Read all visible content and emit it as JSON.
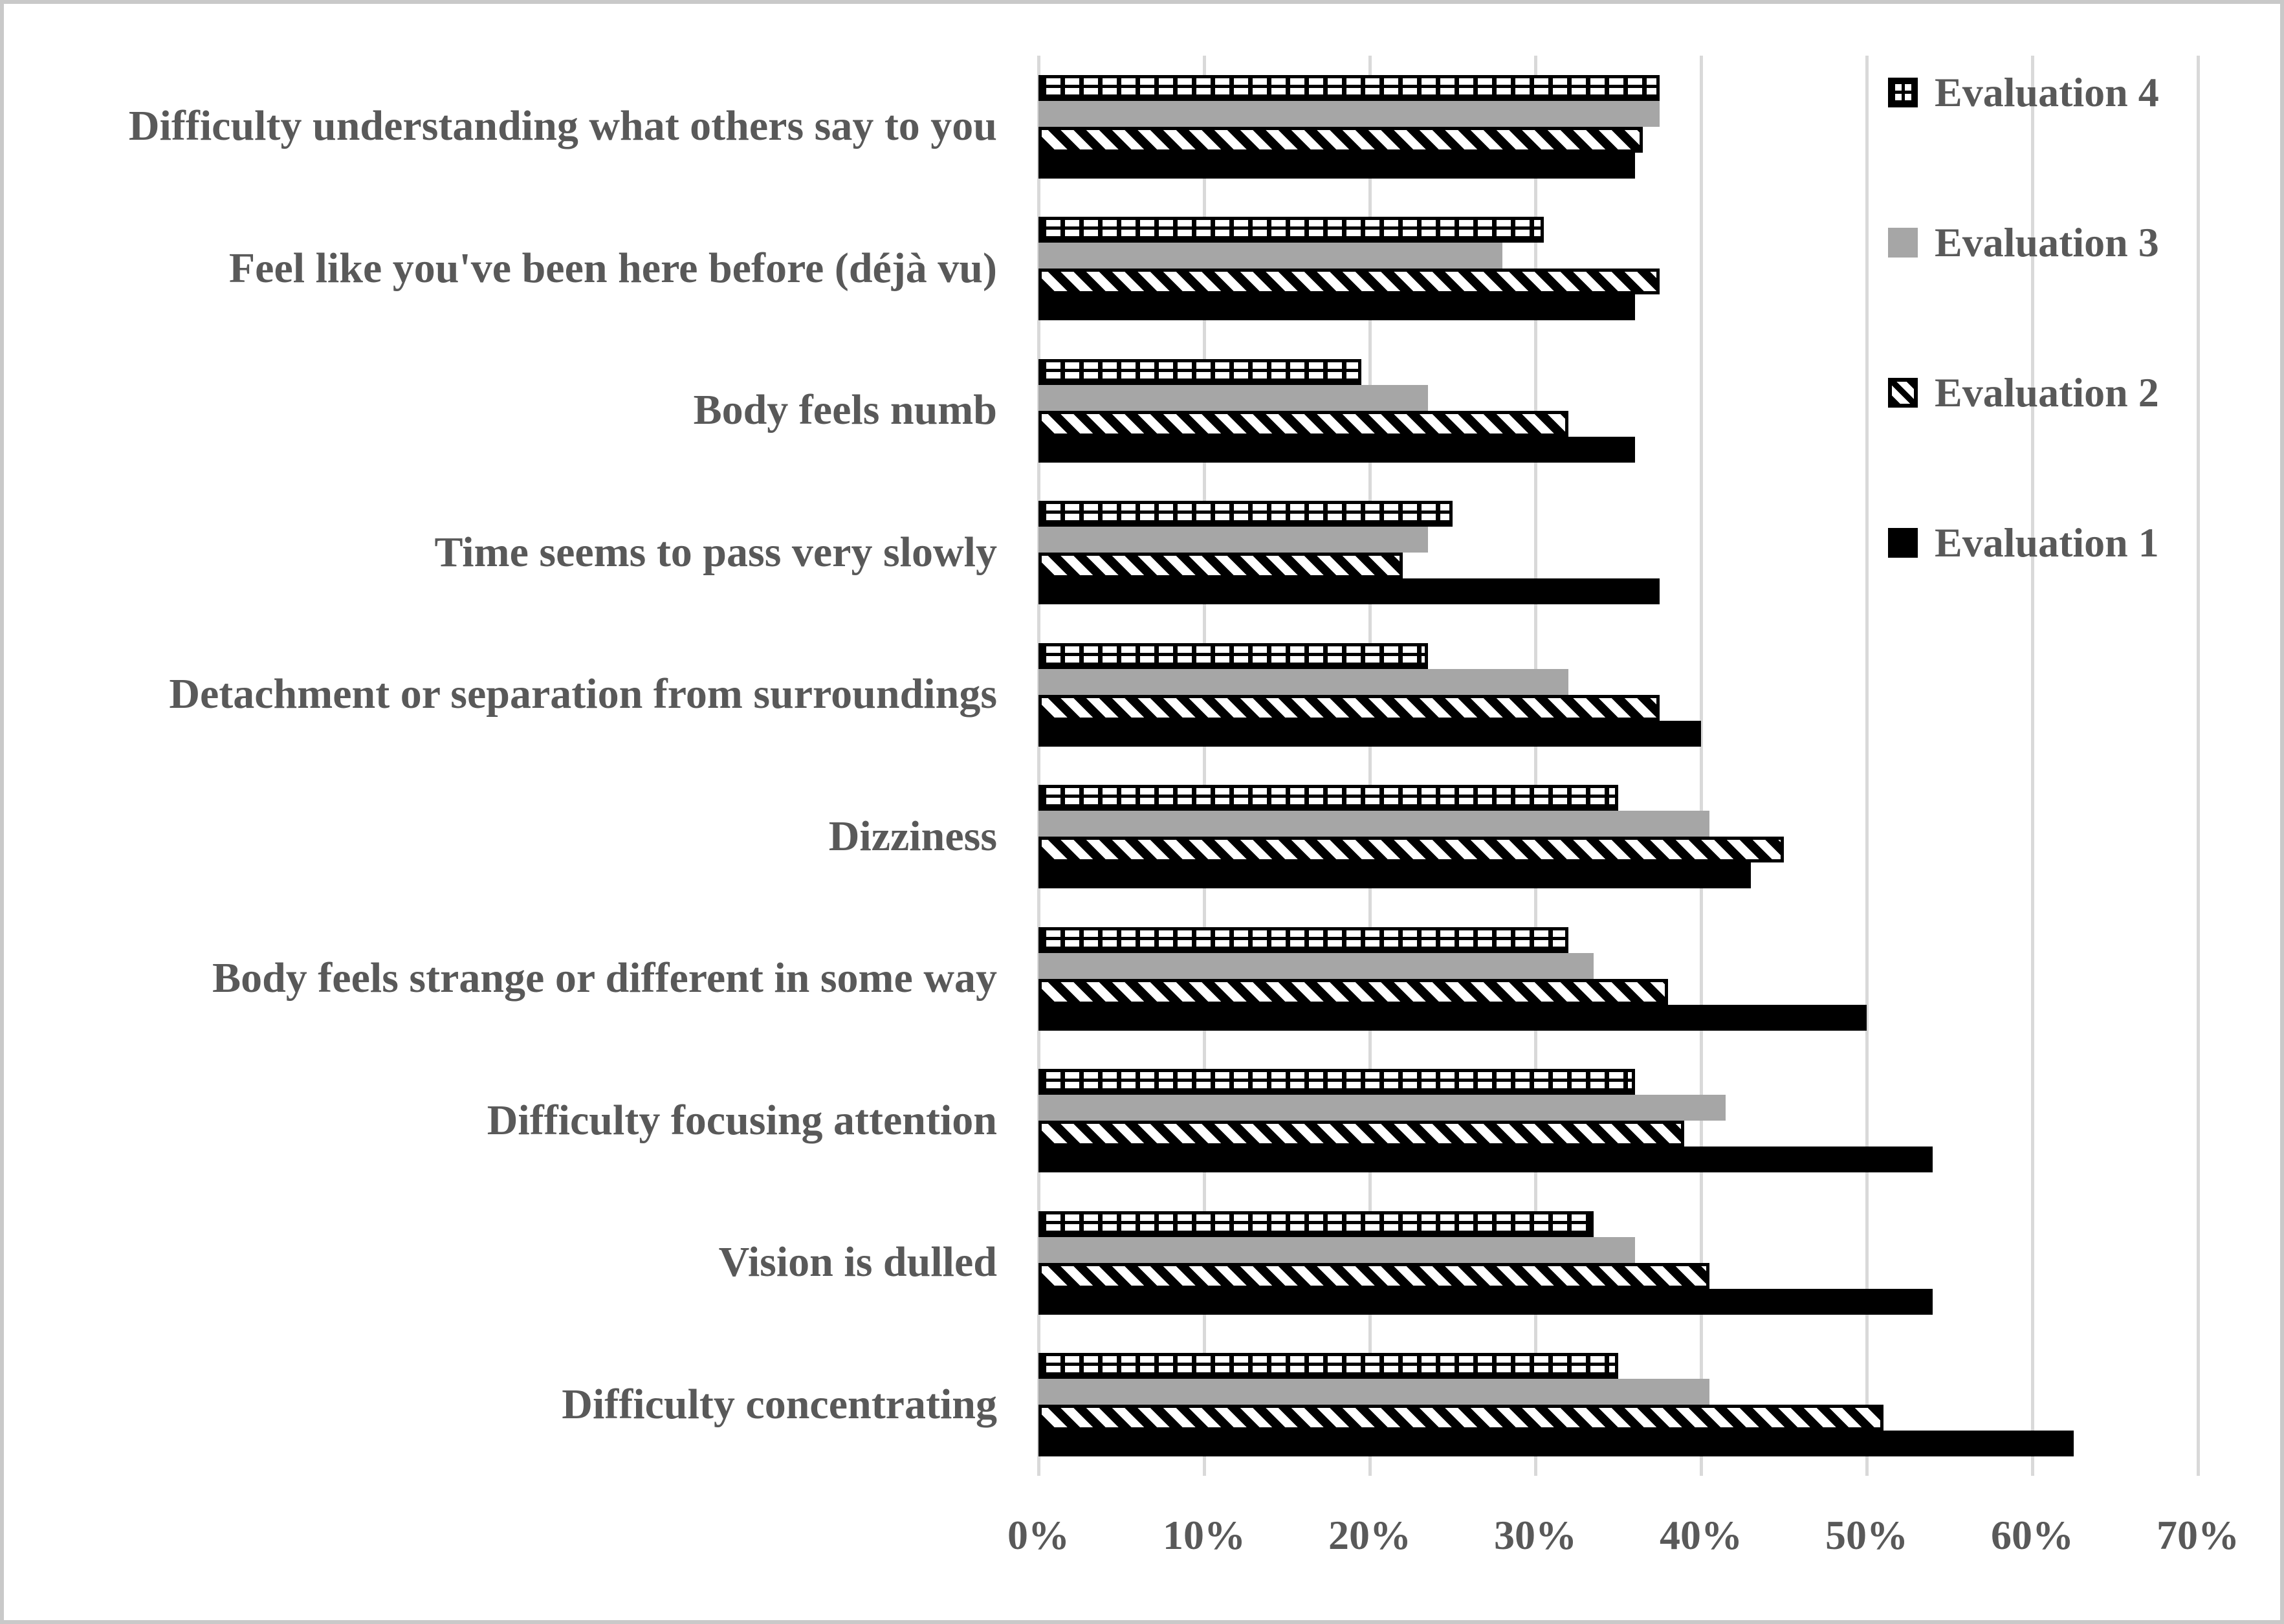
{
  "figure": {
    "background": "#ffffff",
    "frame_border_color": "#c9c9c9"
  },
  "colors": {
    "text": "#595959",
    "gridline": "#d9d9d9",
    "bar_black": "#000000",
    "bar_gray": "#a6a6a6",
    "pattern_foreground": "#000000",
    "pattern_background": "#ffffff"
  },
  "legend": {
    "position": "top-right",
    "items": [
      {
        "label": "Evaluation 4",
        "pattern": "checker"
      },
      {
        "label": "Evaluation 3",
        "pattern": "solid-gray"
      },
      {
        "label": "Evaluation 2",
        "pattern": "diagonal-stripe"
      },
      {
        "label": "Evaluation 1",
        "pattern": "solid-black"
      }
    ]
  },
  "chart_data": {
    "type": "bar",
    "orientation": "horizontal",
    "title": "",
    "xlabel": "",
    "ylabel": "",
    "xlim": [
      0,
      70
    ],
    "x_ticks": [
      "0%",
      "10%",
      "20%",
      "30%",
      "40%",
      "50%",
      "60%",
      "70%"
    ],
    "grid": "vertical",
    "legend_position": "top-right",
    "bar_order_within_group_top_to_bottom": [
      "Evaluation 4",
      "Evaluation 3",
      "Evaluation 2",
      "Evaluation 1"
    ],
    "categories": [
      "Difficulty understanding what others say to you",
      "Feel like you've been here before (déjà vu)",
      "Body feels numb",
      "Time seems to pass very slowly",
      "Detachment or separation from surroundings",
      "Dizziness",
      "Body feels strange or different in some way",
      "Difficulty focusing attention",
      "Vision is dulled",
      "Difficulty concentrating"
    ],
    "series": [
      {
        "name": "Evaluation 4",
        "pattern": "checker",
        "values": [
          37.5,
          30.5,
          19.5,
          25,
          23.5,
          35,
          32,
          36,
          33.5,
          35
        ]
      },
      {
        "name": "Evaluation 3",
        "pattern": "solid-gray",
        "color": "#a6a6a6",
        "values": [
          37.5,
          28,
          23.5,
          23.5,
          32,
          40.5,
          33.5,
          41.5,
          36,
          40.5
        ]
      },
      {
        "name": "Evaluation 2",
        "pattern": "diagonal-stripe",
        "values": [
          36.5,
          37.5,
          32,
          22,
          37.5,
          45,
          38,
          39,
          40.5,
          51
        ]
      },
      {
        "name": "Evaluation 1",
        "pattern": "solid-black",
        "color": "#000000",
        "values": [
          36,
          36,
          36,
          37.5,
          40,
          43,
          50,
          54,
          54,
          62.5
        ]
      }
    ]
  }
}
